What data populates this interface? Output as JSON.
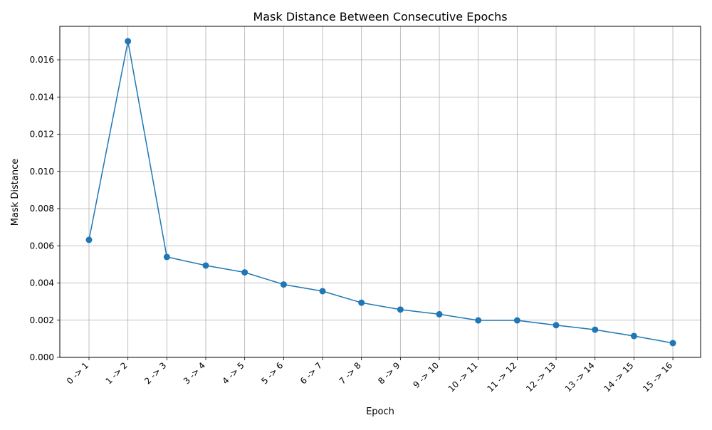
{
  "chart_data": {
    "type": "line",
    "title": "Mask Distance Between Consecutive Epochs",
    "xlabel": "Epoch",
    "ylabel": "Mask Distance",
    "categories": [
      "0 -> 1",
      "1 -> 2",
      "2 -> 3",
      "3 -> 4",
      "4 -> 5",
      "5 -> 6",
      "6 -> 7",
      "7 -> 8",
      "8 -> 9",
      "9 -> 10",
      "10 -> 11",
      "11 -> 12",
      "12 -> 13",
      "13 -> 14",
      "14 -> 15",
      "15 -> 16"
    ],
    "series": [
      {
        "values": [
          0.00632,
          0.017,
          0.0054,
          0.00494,
          0.00457,
          0.00392,
          0.00356,
          0.00294,
          0.00257,
          0.00232,
          0.00199,
          0.00199,
          0.00173,
          0.00149,
          0.00115,
          0.00077
        ],
        "color": "#1f77b4",
        "marker": "circle"
      }
    ],
    "ylim": [
      0,
      0.0178
    ],
    "yticks": [
      "0.000",
      "0.002",
      "0.004",
      "0.006",
      "0.008",
      "0.010",
      "0.012",
      "0.014",
      "0.016"
    ],
    "grid": true,
    "legend": "none"
  }
}
